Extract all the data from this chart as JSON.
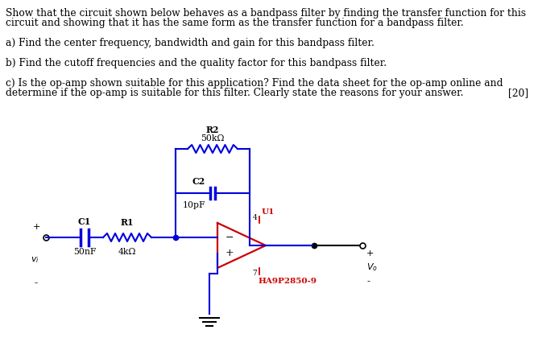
{
  "background_color": "#ffffff",
  "text_color": "#000000",
  "blue_color": "#0000dd",
  "red_color": "#cc0000",
  "title_lines": [
    "Show that the circuit shown below behaves as a bandpass filter by finding the transfer function for this",
    "circuit and showing that it has the same form as the transfer function for a bandpass filter."
  ],
  "part_a": "a) Find the center frequency, bandwidth and gain for this bandpass filter.",
  "part_b": "b) Find the cutoff frequencies and the quality factor for this bandpass filter.",
  "part_c_line1": "c) Is the op-amp shown suitable for this application? Find the data sheet for the op-amp online and",
  "part_c_line2": "determine if the op-amp is suitable for this filter. Clearly state the reasons for your answer.",
  "part_c_mark": "[20]",
  "R2_label": "R2",
  "R2_value": "50kΩ",
  "C2_label": "C2",
  "C2_value": "10pF",
  "C1_label": "C1",
  "C1_value": "50nF",
  "R1_label": "R1",
  "R1_value": "4kΩ",
  "U1_label": "U1",
  "opamp_label": "HA9P2850-9",
  "vi_label": "$v_i$",
  "vo_label": "$V_o$",
  "plus_label": "+",
  "minus_label": "-"
}
